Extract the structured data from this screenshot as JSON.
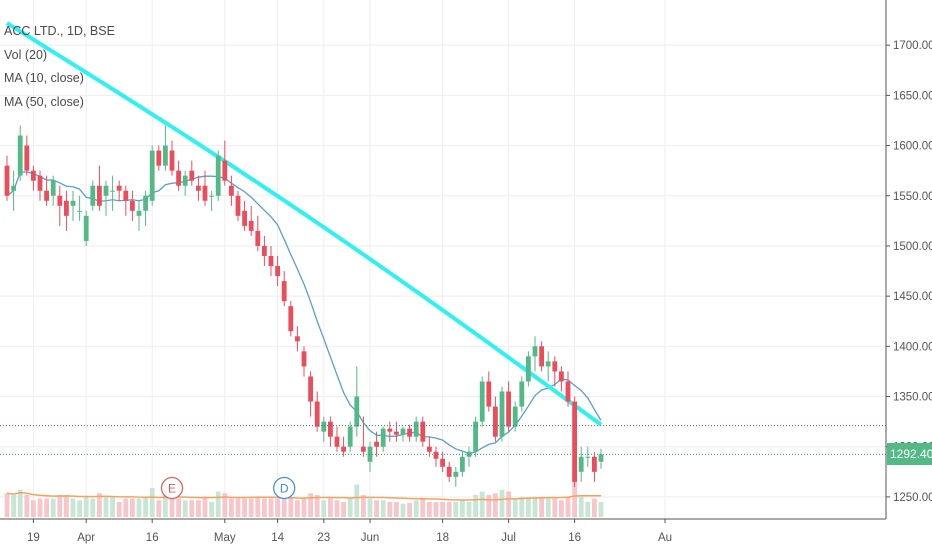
{
  "legend": {
    "symbol": "ACC LTD., 1D, BSE",
    "vol": "Vol (20)",
    "ma10": "MA (10, close)",
    "ma50": "MA (50, close)"
  },
  "colors": {
    "up": "#53b987",
    "down": "#eb4d5c",
    "volUp": "#c8e6d4",
    "volDown": "#f7c6cb",
    "ma10": "#5b9ec9",
    "ma50": "#2ef2f2",
    "volMa": "#f5a25d",
    "grid": "#eeeeee",
    "hline_blue": "#3b6aa8",
    "hline_green": "#2e9e58"
  },
  "markers": [
    {
      "label": "E",
      "date": "Apr 19",
      "color": "#e05a5a"
    },
    {
      "label": "D",
      "date": "May 15",
      "color": "#3d8bd9"
    }
  ],
  "last_price": {
    "label": "1292.40",
    "value": 1292.4,
    "color": "#53b987"
  },
  "chart_data": {
    "type": "candlestick",
    "title": "ACC LTD., 1D, BSE",
    "ylim": [
      1228,
      1745
    ],
    "yticks": [
      "1250.00",
      "1300.00",
      "1350.00",
      "1400.00",
      "1450.00",
      "1500.00",
      "1550.00",
      "1600.00",
      "1650.00",
      "1700.00"
    ],
    "ytick_values": [
      1250,
      1300,
      1350,
      1400,
      1450,
      1500,
      1550,
      1600,
      1650,
      1700
    ],
    "xticks": [
      "19",
      "Apr",
      "16",
      "May",
      "14",
      "23",
      "Jun",
      "18",
      "Jul",
      "16",
      "Au"
    ],
    "horizontal_lines": [
      1321,
      1292.4
    ],
    "series": [
      {
        "name": "ACC LTD.",
        "type": "ohlc",
        "x": [
          "Mar 13",
          "Mar 14",
          "Mar 15",
          "Mar 16",
          "Mar 19",
          "Mar 20",
          "Mar 21",
          "Mar 22",
          "Mar 23",
          "Mar 26",
          "Mar 27",
          "Mar 28",
          "Apr 2",
          "Apr 3",
          "Apr 4",
          "Apr 5",
          "Apr 6",
          "Apr 9",
          "Apr 10",
          "Apr 11",
          "Apr 12",
          "Apr 13",
          "Apr 16",
          "Apr 17",
          "Apr 18",
          "Apr 19",
          "Apr 20",
          "Apr 23",
          "Apr 24",
          "Apr 25",
          "Apr 26",
          "Apr 27",
          "Apr 30",
          "May 2",
          "May 3",
          "May 4",
          "May 7",
          "May 8",
          "May 9",
          "May 10",
          "May 11",
          "May 14",
          "May 15",
          "May 16",
          "May 17",
          "May 18",
          "May 21",
          "May 22",
          "May 23",
          "May 24",
          "May 25",
          "May 28",
          "May 29",
          "May 30",
          "May 31",
          "Jun 1",
          "Jun 4",
          "Jun 5",
          "Jun 6",
          "Jun 7",
          "Jun 8",
          "Jun 11",
          "Jun 12",
          "Jun 13",
          "Jun 14",
          "Jun 15",
          "Jun 18",
          "Jun 19",
          "Jun 20",
          "Jun 21",
          "Jun 22",
          "Jun 25",
          "Jun 26",
          "Jun 27",
          "Jun 28",
          "Jun 29",
          "Jul 2",
          "Jul 3",
          "Jul 4",
          "Jul 5",
          "Jul 6",
          "Jul 9",
          "Jul 10",
          "Jul 11",
          "Jul 12",
          "Jul 13",
          "Jul 16",
          "Jul 17",
          "Jul 18",
          "Jul 19",
          "Jul 20"
        ],
        "ohlc": [
          [
            1580,
            1590,
            1545,
            1550
          ],
          [
            1555,
            1575,
            1535,
            1560
          ],
          [
            1570,
            1620,
            1565,
            1610
          ],
          [
            1600,
            1610,
            1570,
            1575
          ],
          [
            1575,
            1580,
            1555,
            1565
          ],
          [
            1570,
            1575,
            1545,
            1555
          ],
          [
            1555,
            1570,
            1540,
            1545
          ],
          [
            1550,
            1570,
            1540,
            1565
          ],
          [
            1550,
            1560,
            1520,
            1540
          ],
          [
            1545,
            1555,
            1515,
            1530
          ],
          [
            1540,
            1555,
            1525,
            1545
          ],
          [
            1535,
            1550,
            1525,
            1535
          ],
          [
            1505,
            1535,
            1500,
            1530
          ],
          [
            1540,
            1565,
            1535,
            1560
          ],
          [
            1560,
            1580,
            1535,
            1540
          ],
          [
            1550,
            1565,
            1530,
            1560
          ],
          [
            1555,
            1570,
            1535,
            1555
          ],
          [
            1560,
            1565,
            1545,
            1555
          ],
          [
            1555,
            1560,
            1530,
            1545
          ],
          [
            1545,
            1555,
            1525,
            1535
          ],
          [
            1530,
            1545,
            1515,
            1535
          ],
          [
            1535,
            1555,
            1520,
            1550
          ],
          [
            1545,
            1600,
            1540,
            1595
          ],
          [
            1595,
            1600,
            1575,
            1580
          ],
          [
            1580,
            1620,
            1575,
            1600
          ],
          [
            1595,
            1605,
            1570,
            1575
          ],
          [
            1575,
            1585,
            1555,
            1560
          ],
          [
            1560,
            1575,
            1550,
            1570
          ],
          [
            1575,
            1585,
            1560,
            1565
          ],
          [
            1560,
            1570,
            1545,
            1555
          ],
          [
            1560,
            1575,
            1540,
            1545
          ],
          [
            1550,
            1555,
            1535,
            1550
          ],
          [
            1550,
            1595,
            1545,
            1590
          ],
          [
            1585,
            1605,
            1560,
            1565
          ],
          [
            1560,
            1570,
            1540,
            1550
          ],
          [
            1550,
            1555,
            1525,
            1530
          ],
          [
            1535,
            1545,
            1515,
            1520
          ],
          [
            1525,
            1540,
            1510,
            1515
          ],
          [
            1515,
            1530,
            1495,
            1500
          ],
          [
            1500,
            1510,
            1480,
            1490
          ],
          [
            1490,
            1500,
            1470,
            1480
          ],
          [
            1480,
            1490,
            1460,
            1470
          ],
          [
            1465,
            1475,
            1440,
            1445
          ],
          [
            1440,
            1445,
            1410,
            1415
          ],
          [
            1410,
            1420,
            1395,
            1405
          ],
          [
            1395,
            1400,
            1370,
            1380
          ],
          [
            1370,
            1375,
            1330,
            1345
          ],
          [
            1345,
            1355,
            1315,
            1320
          ],
          [
            1315,
            1330,
            1305,
            1325
          ],
          [
            1325,
            1330,
            1300,
            1310
          ],
          [
            1310,
            1320,
            1295,
            1300
          ],
          [
            1300,
            1310,
            1290,
            1295
          ],
          [
            1300,
            1325,
            1295,
            1320
          ],
          [
            1320,
            1380,
            1310,
            1350
          ],
          [
            1300,
            1330,
            1290,
            1295
          ],
          [
            1285,
            1305,
            1275,
            1300
          ],
          [
            1305,
            1315,
            1290,
            1300
          ],
          [
            1300,
            1320,
            1295,
            1318
          ],
          [
            1318,
            1325,
            1305,
            1315
          ],
          [
            1315,
            1325,
            1305,
            1312
          ],
          [
            1312,
            1320,
            1305,
            1318
          ],
          [
            1318,
            1322,
            1305,
            1310
          ],
          [
            1310,
            1330,
            1305,
            1325
          ],
          [
            1325,
            1330,
            1300,
            1305
          ],
          [
            1300,
            1310,
            1290,
            1295
          ],
          [
            1295,
            1300,
            1280,
            1288
          ],
          [
            1288,
            1295,
            1275,
            1280
          ],
          [
            1280,
            1285,
            1265,
            1270
          ],
          [
            1270,
            1280,
            1260,
            1275
          ],
          [
            1275,
            1295,
            1270,
            1290
          ],
          [
            1290,
            1300,
            1280,
            1295
          ],
          [
            1295,
            1330,
            1290,
            1325
          ],
          [
            1325,
            1370,
            1320,
            1365
          ],
          [
            1365,
            1375,
            1335,
            1340
          ],
          [
            1340,
            1350,
            1305,
            1310
          ],
          [
            1310,
            1360,
            1305,
            1355
          ],
          [
            1355,
            1365,
            1315,
            1320
          ],
          [
            1320,
            1345,
            1315,
            1340
          ],
          [
            1340,
            1370,
            1335,
            1365
          ],
          [
            1365,
            1395,
            1360,
            1390
          ],
          [
            1390,
            1410,
            1375,
            1400
          ],
          [
            1400,
            1405,
            1375,
            1380
          ],
          [
            1380,
            1395,
            1365,
            1385
          ],
          [
            1385,
            1390,
            1360,
            1375
          ],
          [
            1375,
            1380,
            1355,
            1365
          ],
          [
            1365,
            1375,
            1340,
            1345
          ],
          [
            1345,
            1350,
            1260,
            1265
          ],
          [
            1275,
            1300,
            1265,
            1290
          ],
          [
            1290,
            1300,
            1280,
            1290
          ],
          [
            1290,
            1295,
            1265,
            1275
          ],
          [
            1285,
            1298,
            1278,
            1292.4
          ]
        ]
      }
    ]
  }
}
